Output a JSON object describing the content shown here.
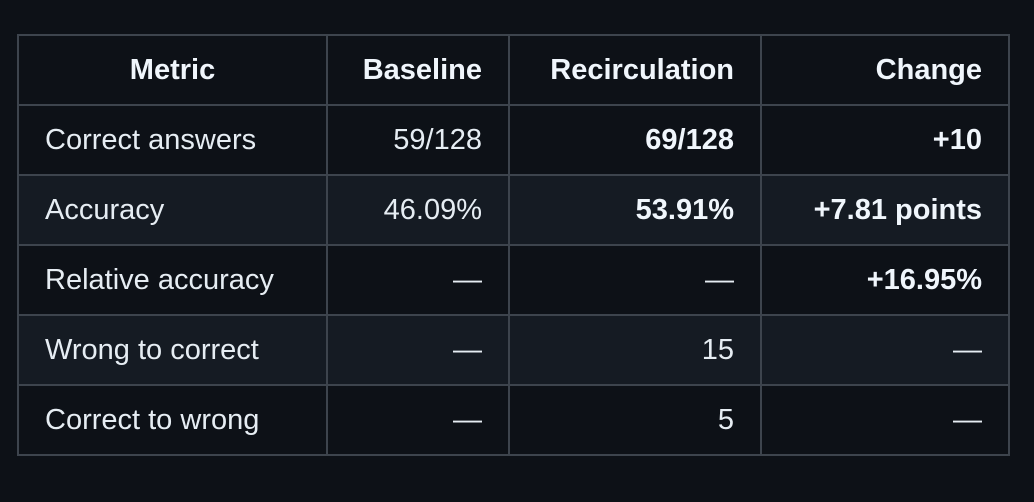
{
  "table": {
    "headers": [
      "Metric",
      "Baseline",
      "Recirculation",
      "Change"
    ],
    "rows": [
      [
        "Correct answers",
        "59/128",
        "69/128",
        "+10"
      ],
      [
        "Accuracy",
        "46.09%",
        "53.91%",
        "+7.81 points"
      ],
      [
        "Relative accuracy",
        "—",
        "—",
        "+16.95%"
      ],
      [
        "Wrong to correct",
        "—",
        "15",
        "—"
      ],
      [
        "Correct to wrong",
        "—",
        "5",
        "—"
      ]
    ]
  }
}
